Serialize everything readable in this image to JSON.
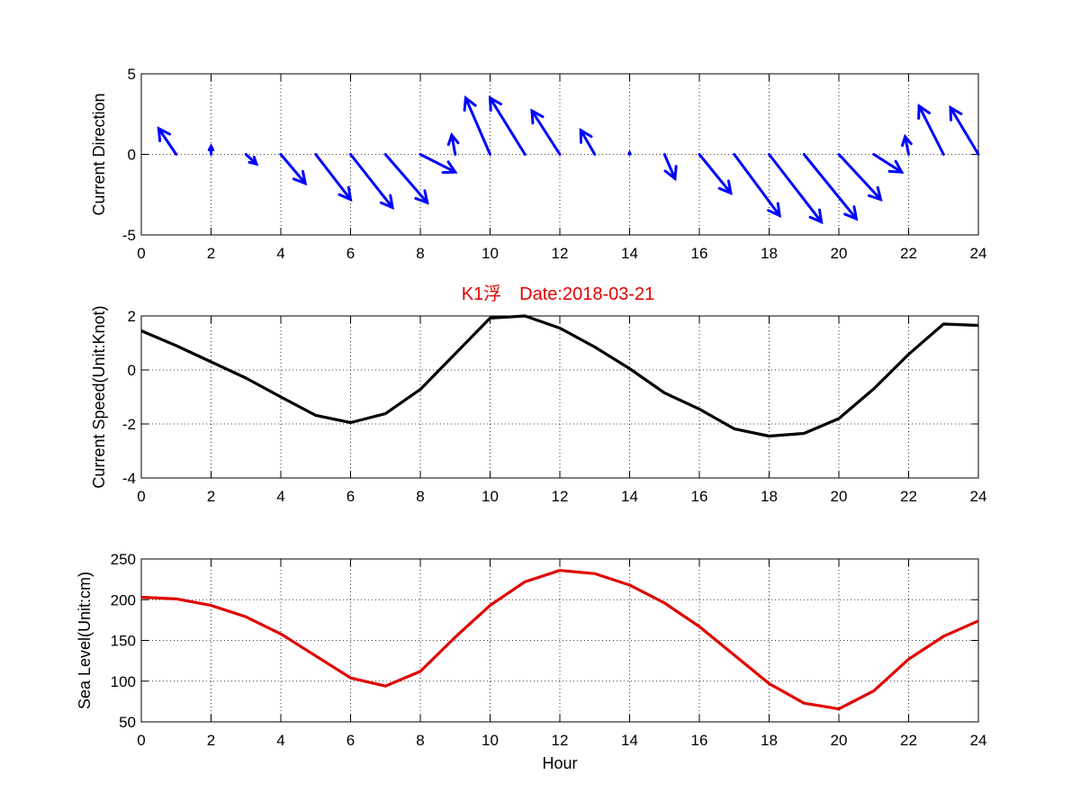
{
  "figure_title": "K1浮　Date:2018-03-21",
  "colors": {
    "quiver": "#0000ff",
    "speed": "#000000",
    "sea_level": "#e00000",
    "title": "#e00000",
    "grid": "#000000"
  },
  "chart_data": [
    {
      "type": "quiver",
      "ylabel": "Current Direction",
      "xlabel": "",
      "xlim": [
        0,
        24
      ],
      "ylim": [
        -5,
        5
      ],
      "xticks": [
        0,
        2,
        4,
        6,
        8,
        10,
        12,
        14,
        16,
        18,
        20,
        22,
        24
      ],
      "yticks": [
        -5,
        0,
        5
      ],
      "grid": true,
      "series": [
        {
          "x": [
            1,
            2,
            3,
            4,
            5,
            6,
            7,
            8,
            9,
            10,
            11,
            12,
            13,
            14,
            15,
            16,
            17,
            18,
            19,
            20,
            21,
            22,
            23,
            24
          ],
          "u": [
            -0.5,
            0,
            0.3,
            0.7,
            1.0,
            1.2,
            1.2,
            1.0,
            -0.1,
            -0.7,
            -1.0,
            -0.8,
            -0.4,
            0,
            0.3,
            0.9,
            1.3,
            1.5,
            1.5,
            1.2,
            0.8,
            -0.1,
            -0.7,
            -0.8
          ],
          "v": [
            1.6,
            0.5,
            -0.6,
            -1.8,
            -2.8,
            -3.3,
            -3.0,
            -1.1,
            1.2,
            3.5,
            3.5,
            2.7,
            1.5,
            0.1,
            -1.5,
            -2.4,
            -3.8,
            -4.2,
            -4.0,
            -2.8,
            -1.1,
            1.1,
            3.0,
            2.9
          ]
        }
      ]
    },
    {
      "type": "line",
      "title": "K1浮　Date:2018-03-21",
      "ylabel": "Current Speed(Unit:Knot)",
      "xlabel": "",
      "xlim": [
        0,
        24
      ],
      "ylim": [
        -4,
        2
      ],
      "xticks": [
        0,
        2,
        4,
        6,
        8,
        10,
        12,
        14,
        16,
        18,
        20,
        22,
        24
      ],
      "yticks": [
        -4,
        -2,
        0,
        2
      ],
      "grid": true,
      "series": [
        {
          "x": [
            0,
            1,
            2,
            3,
            4,
            5,
            6,
            7,
            8,
            9,
            10,
            11,
            12,
            13,
            14,
            15,
            16,
            17,
            18,
            19,
            20,
            21,
            22,
            23,
            24
          ],
          "y": [
            1.45,
            0.9,
            0.3,
            -0.3,
            -1.0,
            -1.68,
            -1.95,
            -1.62,
            -0.72,
            0.6,
            1.92,
            2.0,
            1.55,
            0.85,
            0.05,
            -0.85,
            -1.45,
            -2.18,
            -2.45,
            -2.35,
            -1.8,
            -0.7,
            0.58,
            1.7,
            1.65
          ]
        }
      ]
    },
    {
      "type": "line",
      "ylabel": "Sea Level(Unit:cm)",
      "xlabel": "Hour",
      "xlim": [
        0,
        24
      ],
      "ylim": [
        50,
        250
      ],
      "xticks": [
        0,
        2,
        4,
        6,
        8,
        10,
        12,
        14,
        16,
        18,
        20,
        22,
        24
      ],
      "yticks": [
        50,
        100,
        150,
        200,
        250
      ],
      "grid": true,
      "series": [
        {
          "x": [
            0,
            1,
            2,
            3,
            4,
            5,
            6,
            7,
            8,
            9,
            10,
            11,
            12,
            13,
            14,
            15,
            16,
            17,
            18,
            19,
            20,
            21,
            22,
            23,
            24
          ],
          "y": [
            203,
            201,
            193,
            179,
            158,
            131,
            104,
            94,
            112,
            154,
            193,
            222,
            236,
            232,
            218,
            196,
            167,
            132,
            97,
            73,
            66,
            88,
            127,
            155,
            174
          ]
        }
      ]
    }
  ]
}
